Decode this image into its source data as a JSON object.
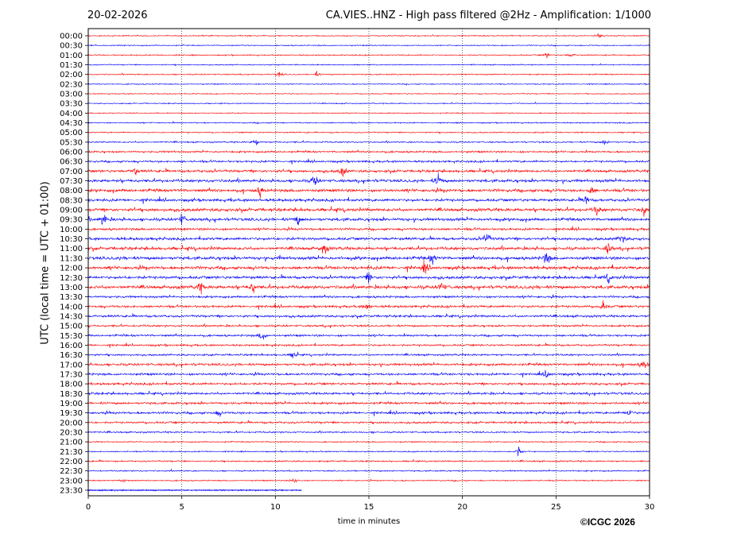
{
  "header": {
    "date": "20-02-2026",
    "title": "CA.VIES..HNZ - High pass filtered @2Hz - Amplification: 1/1000"
  },
  "footer": {
    "credit": "©ICGC 2026"
  },
  "chart_data": {
    "type": "line",
    "title": "CA.VIES..HNZ - High pass filtered @2Hz - Amplification: 1/1000",
    "xlabel": "time in minutes",
    "ylabel": "UTC (local time = UTC + 01:00)",
    "xlim": [
      0,
      30
    ],
    "x_ticks": [
      0,
      5,
      10,
      15,
      20,
      25,
      30
    ],
    "vertical_grid": true,
    "trace_colors": [
      "#ff0000",
      "#0000ff"
    ],
    "rows": [
      "00:00",
      "00:30",
      "01:00",
      "01:30",
      "02:00",
      "02:30",
      "03:00",
      "03:30",
      "04:00",
      "04:30",
      "05:00",
      "05:30",
      "06:00",
      "06:30",
      "07:00",
      "07:30",
      "08:00",
      "08:30",
      "09:00",
      "09:30",
      "10:00",
      "10:30",
      "11:00",
      "11:30",
      "12:00",
      "12:30",
      "13:00",
      "13:30",
      "14:00",
      "14:30",
      "15:00",
      "15:30",
      "16:00",
      "16:30",
      "17:00",
      "17:30",
      "18:00",
      "18:30",
      "19:00",
      "19:30",
      "20:00",
      "20:30",
      "21:00",
      "21:30",
      "22:00",
      "22:30",
      "23:00",
      "23:30"
    ],
    "row_activity": [
      0.15,
      0.15,
      0.18,
      0.15,
      0.2,
      0.15,
      0.12,
      0.15,
      0.12,
      0.2,
      0.2,
      0.3,
      0.45,
      0.5,
      0.7,
      0.8,
      0.85,
      0.75,
      0.9,
      0.85,
      0.6,
      0.75,
      0.85,
      0.9,
      0.9,
      0.8,
      0.95,
      0.55,
      0.6,
      0.6,
      0.5,
      0.5,
      0.45,
      0.45,
      0.65,
      0.6,
      0.6,
      0.6,
      0.6,
      0.6,
      0.5,
      0.35,
      0.2,
      0.2,
      0.3,
      0.25,
      0.2,
      0.1
    ],
    "last_row_fraction": 0.38,
    "events": [
      {
        "row": 0,
        "minute": 27.3,
        "amp": 0.35
      },
      {
        "row": 2,
        "minute": 24.5,
        "amp": 0.35
      },
      {
        "row": 2,
        "minute": 25.8,
        "amp": 0.3
      },
      {
        "row": 4,
        "minute": 10.2,
        "amp": 0.3
      },
      {
        "row": 4,
        "minute": 12.2,
        "amp": 0.3
      },
      {
        "row": 11,
        "minute": 9.0,
        "amp": 0.45
      },
      {
        "row": 11,
        "minute": 27.6,
        "amp": 0.4
      },
      {
        "row": 14,
        "minute": 2.5,
        "amp": 0.6
      },
      {
        "row": 14,
        "minute": 13.6,
        "amp": 0.9
      },
      {
        "row": 15,
        "minute": 12.1,
        "amp": 0.9
      },
      {
        "row": 15,
        "minute": 18.7,
        "amp": 0.9
      },
      {
        "row": 16,
        "minute": 9.2,
        "amp": 0.7
      },
      {
        "row": 16,
        "minute": 26.9,
        "amp": 0.6
      },
      {
        "row": 17,
        "minute": 26.6,
        "amp": 0.8
      },
      {
        "row": 18,
        "minute": 29.7,
        "amp": 0.8
      },
      {
        "row": 18,
        "minute": 27.2,
        "amp": 0.7
      },
      {
        "row": 19,
        "minute": 0.8,
        "amp": 0.9
      },
      {
        "row": 19,
        "minute": 5.0,
        "amp": 0.8
      },
      {
        "row": 19,
        "minute": 11.2,
        "amp": 0.7
      },
      {
        "row": 21,
        "minute": 21.3,
        "amp": 0.9
      },
      {
        "row": 21,
        "minute": 28.5,
        "amp": 0.8
      },
      {
        "row": 22,
        "minute": 12.6,
        "amp": 0.9
      },
      {
        "row": 22,
        "minute": 27.8,
        "amp": 0.8
      },
      {
        "row": 23,
        "minute": 24.5,
        "amp": 1.0
      },
      {
        "row": 23,
        "minute": 18.4,
        "amp": 0.8
      },
      {
        "row": 24,
        "minute": 18.0,
        "amp": 0.8
      },
      {
        "row": 25,
        "minute": 15.0,
        "amp": 0.8
      },
      {
        "row": 25,
        "minute": 27.8,
        "amp": 0.6
      },
      {
        "row": 26,
        "minute": 6.0,
        "amp": 0.8
      },
      {
        "row": 26,
        "minute": 8.8,
        "amp": 0.8
      },
      {
        "row": 26,
        "minute": 18.9,
        "amp": 0.8
      },
      {
        "row": 28,
        "minute": 14.9,
        "amp": 0.6
      },
      {
        "row": 28,
        "minute": 27.5,
        "amp": 0.7
      },
      {
        "row": 31,
        "minute": 9.3,
        "amp": 0.9
      },
      {
        "row": 33,
        "minute": 11.0,
        "amp": 0.7
      },
      {
        "row": 34,
        "minute": 29.7,
        "amp": 0.7
      },
      {
        "row": 35,
        "minute": 24.5,
        "amp": 0.6
      },
      {
        "row": 39,
        "minute": 28.9,
        "amp": 0.6
      },
      {
        "row": 39,
        "minute": 7.0,
        "amp": 0.5
      },
      {
        "row": 43,
        "minute": 23.0,
        "amp": 0.7
      },
      {
        "row": 46,
        "minute": 11.0,
        "amp": 0.45
      },
      {
        "row": 46,
        "minute": 1.9,
        "amp": 0.35
      }
    ]
  }
}
